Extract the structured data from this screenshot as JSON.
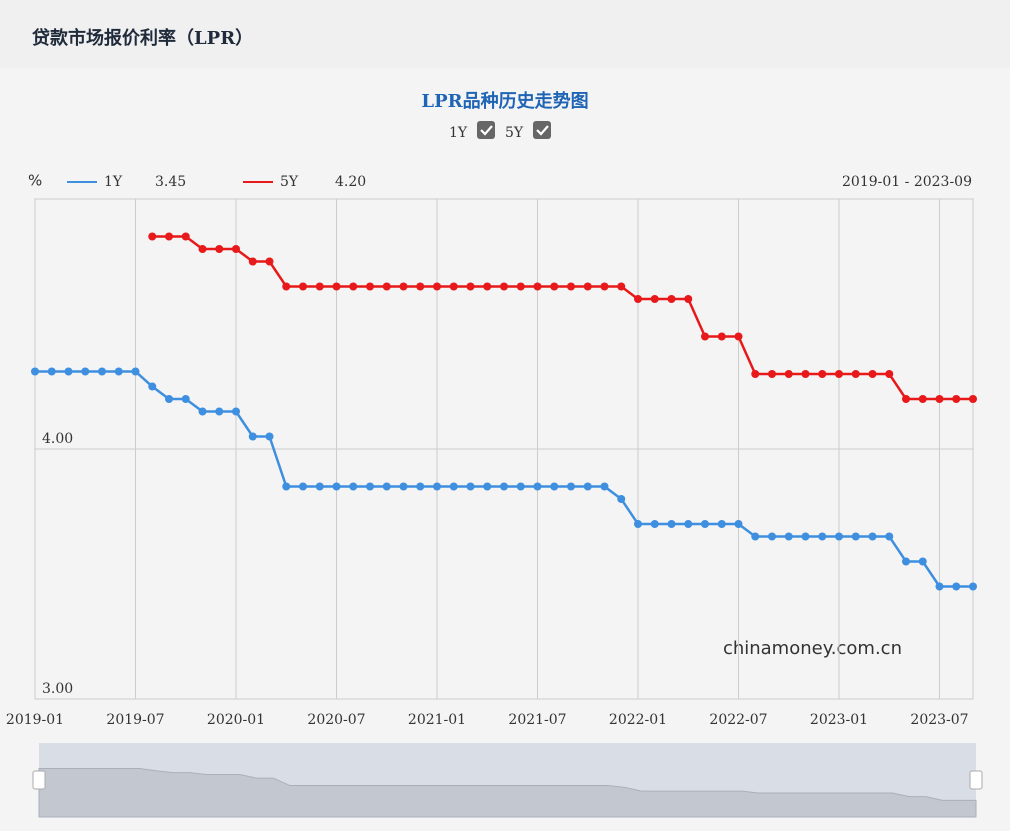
{
  "header": {
    "title": "贷款市场报价利率（LPR）"
  },
  "controls": [
    {
      "label": "1Y"
    },
    {
      "label": "5Y"
    }
  ],
  "watermark": "chinamoney.com.cn",
  "chart_data": {
    "type": "line",
    "title": "LPR品种历史走势图",
    "y_unit": "%",
    "range_label": "2019-01 - 2023-09",
    "categories": [
      "2019-01",
      null,
      null,
      null,
      null,
      null,
      "2019-07",
      null,
      null,
      null,
      null,
      null,
      "2020-01",
      null,
      null,
      null,
      null,
      null,
      "2020-07",
      null,
      null,
      null,
      null,
      null,
      "2021-01",
      null,
      null,
      null,
      null,
      null,
      "2021-07",
      null,
      null,
      null,
      null,
      null,
      "2022-01",
      null,
      null,
      null,
      null,
      null,
      "2022-07",
      null,
      null,
      null,
      null,
      null,
      "2023-01",
      null,
      null,
      null,
      null,
      null,
      "2023-07",
      null,
      null
    ],
    "series": [
      {
        "name": "1Y",
        "latest": "3.45",
        "color": "#3f8fe0",
        "values": [
          4.31,
          4.31,
          4.31,
          4.31,
          4.31,
          4.31,
          4.31,
          4.25,
          4.2,
          4.2,
          4.15,
          4.15,
          4.15,
          4.05,
          4.05,
          3.85,
          3.85,
          3.85,
          3.85,
          3.85,
          3.85,
          3.85,
          3.85,
          3.85,
          3.85,
          3.85,
          3.85,
          3.85,
          3.85,
          3.85,
          3.85,
          3.85,
          3.85,
          3.85,
          3.85,
          3.8,
          3.7,
          3.7,
          3.7,
          3.7,
          3.7,
          3.7,
          3.7,
          3.65,
          3.65,
          3.65,
          3.65,
          3.65,
          3.65,
          3.65,
          3.65,
          3.65,
          3.55,
          3.55,
          3.45,
          3.45,
          3.45
        ]
      },
      {
        "name": "5Y",
        "latest": "4.20",
        "color": "#e8191a",
        "values": [
          null,
          null,
          null,
          null,
          null,
          null,
          null,
          4.85,
          4.85,
          4.85,
          4.8,
          4.8,
          4.8,
          4.75,
          4.75,
          4.65,
          4.65,
          4.65,
          4.65,
          4.65,
          4.65,
          4.65,
          4.65,
          4.65,
          4.65,
          4.65,
          4.65,
          4.65,
          4.65,
          4.65,
          4.65,
          4.65,
          4.65,
          4.65,
          4.65,
          4.65,
          4.6,
          4.6,
          4.6,
          4.6,
          4.45,
          4.45,
          4.45,
          4.3,
          4.3,
          4.3,
          4.3,
          4.3,
          4.3,
          4.3,
          4.3,
          4.3,
          4.2,
          4.2,
          4.2,
          4.2,
          4.2
        ]
      }
    ],
    "ylim": [
      3,
      5
    ],
    "yticks": [
      {
        "value": 3,
        "label": "3.00"
      },
      {
        "value": 4,
        "label": "4.00"
      }
    ],
    "grid": true
  }
}
